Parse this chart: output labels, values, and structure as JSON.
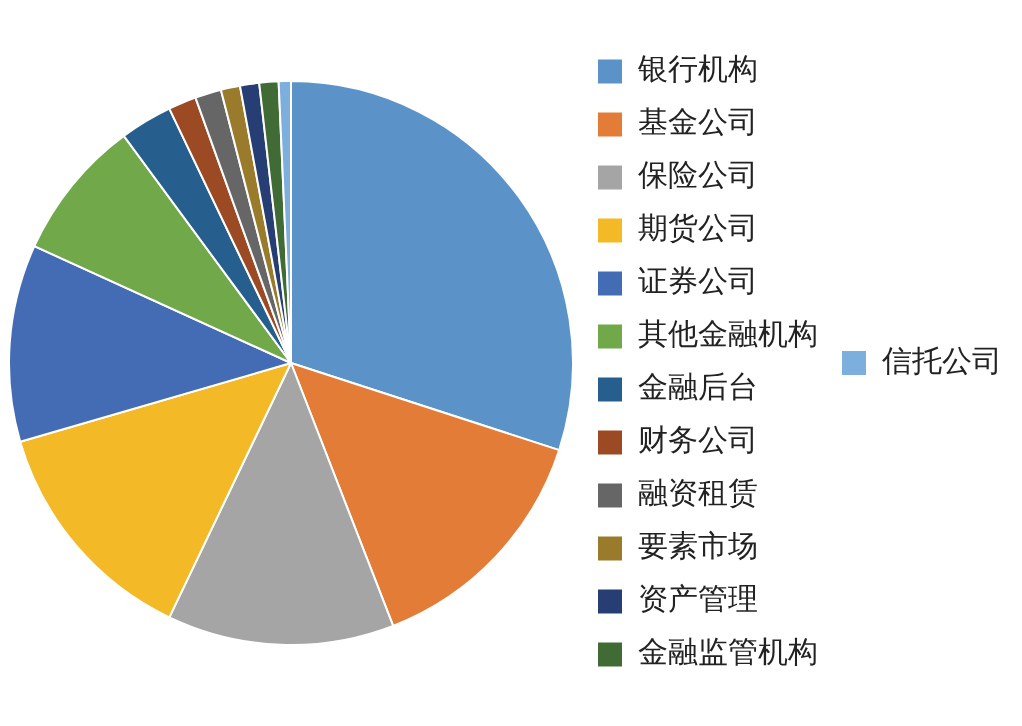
{
  "chart_data": {
    "type": "pie",
    "categories": [
      "银行机构",
      "基金公司",
      "保险公司",
      "期货公司",
      "证券公司",
      "其他金融机构",
      "金融后台",
      "财务公司",
      "融资租赁",
      "要素市场",
      "资产管理",
      "金融监管机构",
      "信托公司"
    ],
    "values": [
      30.0,
      14.1,
      13.0,
      13.4,
      11.3,
      8.1,
      3.0,
      1.6,
      1.5,
      1.1,
      1.1,
      1.1,
      0.7
    ],
    "colors": [
      "#5b93c9",
      "#e27c37",
      "#a5a5a5",
      "#f4b926",
      "#436cb5",
      "#70a84a",
      "#265e8d",
      "#9b4a23",
      "#666666",
      "#9a7b2b",
      "#263e73",
      "#416b34",
      "#7cafdd"
    ],
    "legend": "right"
  }
}
